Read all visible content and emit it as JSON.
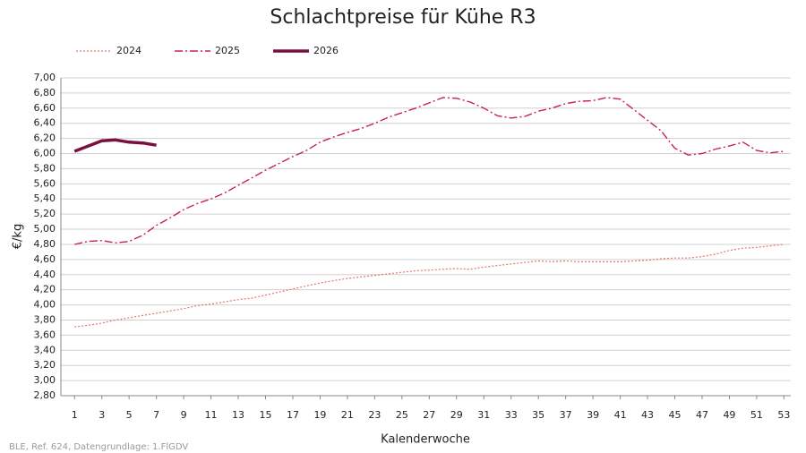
{
  "chart_data": {
    "type": "line",
    "title": "Schlachtpreise für Kühe R3",
    "x_label": "Kalenderwoche",
    "y_label": "€/kg",
    "source": "BLE, Ref. 624, Datengrundlage: 1.FlGDV",
    "x": [
      1,
      2,
      3,
      4,
      5,
      6,
      7,
      8,
      9,
      10,
      11,
      12,
      13,
      14,
      15,
      16,
      17,
      18,
      19,
      20,
      21,
      22,
      23,
      24,
      25,
      26,
      27,
      28,
      29,
      30,
      31,
      32,
      33,
      34,
      35,
      36,
      37,
      38,
      39,
      40,
      41,
      42,
      43,
      44,
      45,
      46,
      47,
      48,
      49,
      50,
      51,
      52,
      53
    ],
    "series": [
      {
        "name": "2024",
        "color": "#e8736f",
        "dash": "dotted",
        "values": [
          3.71,
          3.73,
          3.76,
          3.8,
          3.83,
          3.86,
          3.89,
          3.92,
          3.95,
          3.99,
          4.01,
          4.04,
          4.07,
          4.09,
          4.13,
          4.17,
          4.21,
          4.25,
          4.29,
          4.32,
          4.35,
          4.37,
          4.39,
          4.41,
          4.43,
          4.45,
          4.46,
          4.47,
          4.48,
          4.47,
          4.5,
          4.52,
          4.54,
          4.56,
          4.58,
          4.57,
          4.58,
          4.57,
          4.57,
          4.57,
          4.57,
          4.58,
          4.59,
          4.61,
          4.62,
          4.62,
          4.64,
          4.67,
          4.72,
          4.75,
          4.76,
          4.78,
          4.8
        ]
      },
      {
        "name": "2025",
        "color": "#c8205a",
        "dash": "dashdot",
        "values": [
          4.8,
          4.84,
          4.85,
          4.82,
          4.84,
          4.92,
          5.05,
          5.15,
          5.26,
          5.34,
          5.4,
          5.48,
          5.58,
          5.68,
          5.78,
          5.87,
          5.96,
          6.04,
          6.15,
          6.22,
          6.28,
          6.33,
          6.4,
          6.48,
          6.54,
          6.6,
          6.67,
          6.74,
          6.73,
          6.68,
          6.6,
          6.5,
          6.47,
          6.49,
          6.56,
          6.6,
          6.66,
          6.69,
          6.7,
          6.74,
          6.72,
          6.58,
          6.44,
          6.3,
          6.07,
          5.98,
          6.0,
          6.06,
          6.1,
          6.15,
          6.04,
          6.01,
          6.03
        ]
      },
      {
        "name": "2026",
        "color": "#7a1040",
        "dash": "solid",
        "values": [
          6.03,
          6.1,
          6.17,
          6.18,
          6.15,
          6.14,
          6.11,
          null,
          null,
          null,
          null,
          null,
          null,
          null,
          null,
          null,
          null,
          null,
          null,
          null,
          null,
          null,
          null,
          null,
          null,
          null,
          null,
          null,
          null,
          null,
          null,
          null,
          null,
          null,
          null,
          null,
          null,
          null,
          null,
          null,
          null,
          null,
          null,
          null,
          null,
          null,
          null,
          null,
          null,
          null,
          null,
          null,
          null
        ]
      }
    ],
    "xlim": [
      0,
      53.5
    ],
    "xticks": [
      1,
      3,
      5,
      7,
      9,
      11,
      13,
      15,
      17,
      19,
      21,
      23,
      25,
      27,
      29,
      31,
      33,
      35,
      37,
      39,
      41,
      43,
      45,
      47,
      49,
      51,
      53
    ],
    "ylim": [
      2.8,
      7.0
    ],
    "yticks": [
      {
        "value": 2.8,
        "label": "2,80"
      },
      {
        "value": 3.0,
        "label": "3,00"
      },
      {
        "value": 3.2,
        "label": "3,20"
      },
      {
        "value": 3.4,
        "label": "3,40"
      },
      {
        "value": 3.6,
        "label": "3,60"
      },
      {
        "value": 3.8,
        "label": "3,80"
      },
      {
        "value": 4.0,
        "label": "4,00"
      },
      {
        "value": 4.2,
        "label": "4,20"
      },
      {
        "value": 4.4,
        "label": "4,40"
      },
      {
        "value": 4.6,
        "label": "4,60"
      },
      {
        "value": 4.8,
        "label": "4,80"
      },
      {
        "value": 5.0,
        "label": "5,00"
      },
      {
        "value": 5.2,
        "label": "5,20"
      },
      {
        "value": 5.4,
        "label": "5,40"
      },
      {
        "value": 5.6,
        "label": "5,60"
      },
      {
        "value": 5.8,
        "label": "5,80"
      },
      {
        "value": 6.0,
        "label": "6,00"
      },
      {
        "value": 6.2,
        "label": "6,20"
      },
      {
        "value": 6.4,
        "label": "6,40"
      },
      {
        "value": 6.6,
        "label": "6,60"
      },
      {
        "value": 6.8,
        "label": "6,80"
      },
      {
        "value": 7.0,
        "label": "7,00"
      }
    ],
    "grid": true,
    "legend": "top-left"
  }
}
